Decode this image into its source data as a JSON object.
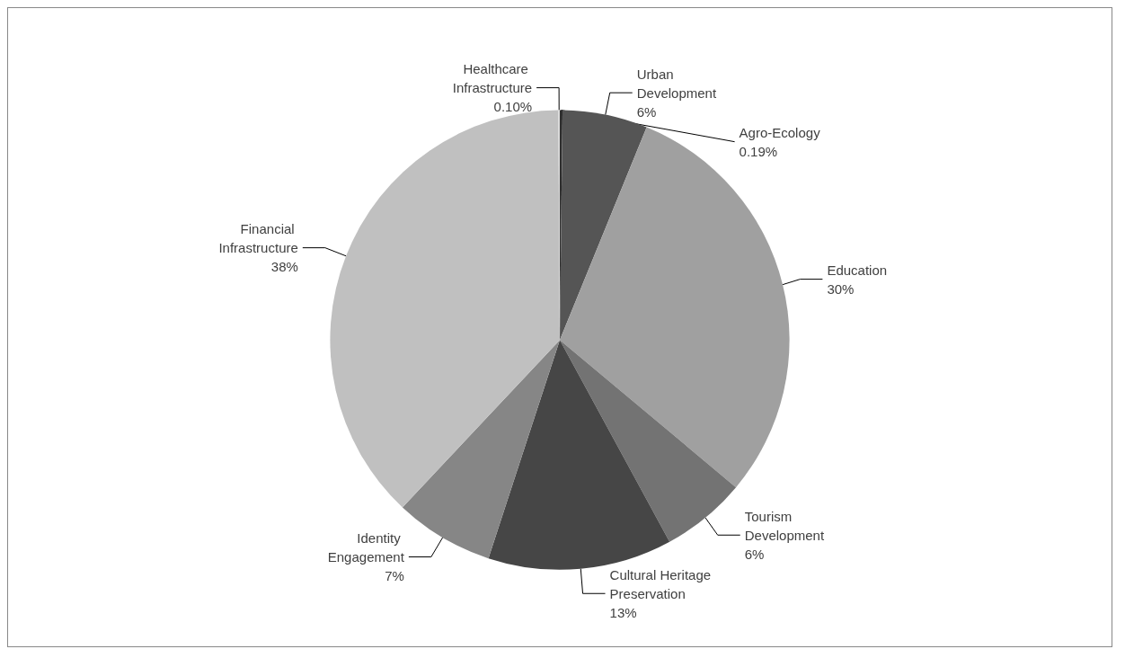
{
  "chart_data": {
    "type": "pie",
    "categories": [
      "Agro-Ecology",
      "Urban Development",
      "Education",
      "Tourism Development",
      "Cultural Heritage Preservation",
      "Identity Engagement",
      "Financial Infrastructure",
      "Healthcare Infrastructure"
    ],
    "values": [
      0.19,
      6,
      30,
      6,
      13,
      7,
      38,
      0.1
    ],
    "value_labels": [
      "0.19%",
      "6%",
      "30%",
      "6%",
      "13%",
      "7%",
      "38%",
      "0.10%"
    ],
    "colors": [
      "#2e2e2e",
      "#555555",
      "#a0a0a0",
      "#737373",
      "#464646",
      "#868686",
      "#c0c0c0",
      "#d8d8d8"
    ],
    "legend": false
  }
}
